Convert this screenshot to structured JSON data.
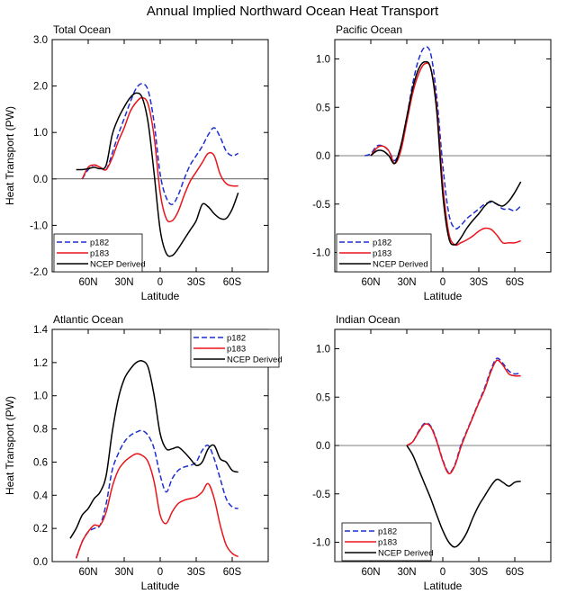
{
  "figure": {
    "title": "Annual Implied Northward Ocean Heat Transport"
  },
  "chart_data": [
    {
      "type": "line",
      "title": "Total Ocean",
      "xlabel": "Latitude",
      "ylabel": "Heat Transport (PW)",
      "xlim": [
        90,
        -90
      ],
      "ylim": [
        -2.0,
        3.0
      ],
      "xticks": [
        60,
        30,
        0,
        -30,
        -60
      ],
      "xtick_labels": [
        "60N",
        "30N",
        "0",
        "30S",
        "60S"
      ],
      "yticks": [
        -2.0,
        -1.0,
        0.0,
        1.0,
        2.0,
        3.0
      ],
      "ytick_labels": [
        "-2.0",
        "-1.0",
        "0.0",
        "1.0",
        "2.0",
        "3.0"
      ],
      "legend_position": "bottom-left",
      "zero_line": true,
      "series": [
        {
          "name": "p182",
          "color": "#1f2fcf",
          "dash": true,
          "x": [
            65,
            60,
            55,
            50,
            45,
            40,
            35,
            30,
            25,
            20,
            15,
            10,
            5,
            0,
            -5,
            -10,
            -15,
            -20,
            -25,
            -30,
            -35,
            -40,
            -45,
            -50,
            -55,
            -60,
            -65
          ],
          "y": [
            0.0,
            0.2,
            0.3,
            0.25,
            0.2,
            0.55,
            0.95,
            1.3,
            1.65,
            1.95,
            2.05,
            1.9,
            1.2,
            0.1,
            -0.4,
            -0.55,
            -0.35,
            0.0,
            0.3,
            0.5,
            0.7,
            0.95,
            1.1,
            0.9,
            0.6,
            0.5,
            0.55
          ]
        },
        {
          "name": "p183",
          "color": "#e8151b",
          "dash": false,
          "x": [
            65,
            60,
            55,
            50,
            45,
            40,
            35,
            30,
            25,
            20,
            15,
            10,
            5,
            0,
            -5,
            -10,
            -15,
            -20,
            -25,
            -30,
            -35,
            -40,
            -45,
            -50,
            -55,
            -60,
            -65
          ],
          "y": [
            0.0,
            0.25,
            0.3,
            0.25,
            0.2,
            0.45,
            0.8,
            1.1,
            1.45,
            1.65,
            1.75,
            1.6,
            0.9,
            -0.3,
            -0.85,
            -0.9,
            -0.7,
            -0.35,
            -0.05,
            0.15,
            0.35,
            0.55,
            0.5,
            0.1,
            -0.1,
            -0.15,
            -0.15
          ]
        },
        {
          "name": "NCEP Derived",
          "color": "#000000",
          "dash": false,
          "x": [
            70,
            65,
            60,
            55,
            50,
            45,
            40,
            35,
            30,
            25,
            20,
            15,
            10,
            5,
            0,
            -5,
            -10,
            -15,
            -20,
            -25,
            -30,
            -35,
            -40,
            -45,
            -50,
            -55,
            -60,
            -65
          ],
          "y": [
            0.2,
            0.2,
            0.22,
            0.25,
            0.22,
            0.3,
            0.95,
            1.3,
            1.55,
            1.75,
            1.85,
            1.75,
            1.2,
            0.1,
            -1.1,
            -1.6,
            -1.65,
            -1.5,
            -1.3,
            -1.1,
            -0.9,
            -0.55,
            -0.6,
            -0.75,
            -0.85,
            -0.85,
            -0.65,
            -0.3
          ]
        }
      ]
    },
    {
      "type": "line",
      "title": "Pacific Ocean",
      "xlabel": "Latitude",
      "ylabel": "",
      "xlim": [
        90,
        -90
      ],
      "ylim": [
        -1.2,
        1.2
      ],
      "xticks": [
        60,
        30,
        0,
        -30,
        -60
      ],
      "xtick_labels": [
        "60N",
        "30N",
        "0",
        "30S",
        "60S"
      ],
      "yticks": [
        -1.0,
        -0.5,
        0.0,
        0.5,
        1.0
      ],
      "ytick_labels": [
        "-1.0",
        "-0.5",
        "0.0",
        "0.5",
        "1.0"
      ],
      "legend_position": "bottom-left",
      "zero_line": true,
      "series": [
        {
          "name": "p182",
          "color": "#1f2fcf",
          "dash": true,
          "x": [
            65,
            60,
            55,
            50,
            45,
            40,
            35,
            30,
            25,
            20,
            15,
            10,
            5,
            0,
            -5,
            -10,
            -15,
            -20,
            -25,
            -30,
            -35,
            -40,
            -45,
            -50,
            -55,
            -60,
            -65
          ],
          "y": [
            0.0,
            0.02,
            0.1,
            0.1,
            0.05,
            -0.05,
            0.1,
            0.4,
            0.75,
            1.0,
            1.12,
            1.05,
            0.6,
            -0.1,
            -0.6,
            -0.75,
            -0.72,
            -0.65,
            -0.6,
            -0.55,
            -0.5,
            -0.48,
            -0.5,
            -0.55,
            -0.55,
            -0.57,
            -0.52
          ]
        },
        {
          "name": "p183",
          "color": "#e8151b",
          "dash": false,
          "x": [
            60,
            55,
            50,
            45,
            40,
            35,
            30,
            25,
            20,
            15,
            10,
            5,
            0,
            -5,
            -10,
            -15,
            -20,
            -25,
            -30,
            -35,
            -40,
            -45,
            -50,
            -55,
            -60,
            -65
          ],
          "y": [
            0.0,
            0.08,
            0.1,
            0.05,
            -0.08,
            0.05,
            0.35,
            0.65,
            0.85,
            0.95,
            0.9,
            0.5,
            -0.3,
            -0.8,
            -0.92,
            -0.9,
            -0.87,
            -0.83,
            -0.78,
            -0.75,
            -0.76,
            -0.82,
            -0.9,
            -0.9,
            -0.9,
            -0.88
          ]
        },
        {
          "name": "NCEP Derived",
          "color": "#000000",
          "dash": false,
          "x": [
            60,
            55,
            50,
            45,
            40,
            35,
            30,
            25,
            20,
            15,
            10,
            5,
            0,
            -5,
            -10,
            -15,
            -20,
            -25,
            -30,
            -35,
            -40,
            -45,
            -50,
            -55,
            -60,
            -65
          ],
          "y": [
            0.0,
            0.05,
            0.05,
            0.0,
            -0.08,
            0.1,
            0.4,
            0.7,
            0.9,
            0.97,
            0.9,
            0.45,
            -0.4,
            -0.85,
            -0.92,
            -0.85,
            -0.75,
            -0.67,
            -0.6,
            -0.52,
            -0.47,
            -0.5,
            -0.52,
            -0.47,
            -0.38,
            -0.27
          ]
        }
      ]
    },
    {
      "type": "line",
      "title": "Atlantic Ocean",
      "xlabel": "Latitude",
      "ylabel": "Heat Transport (PW)",
      "xlim": [
        90,
        -90
      ],
      "ylim": [
        0.0,
        1.4
      ],
      "xticks": [
        60,
        30,
        0,
        -30,
        -60
      ],
      "xtick_labels": [
        "60N",
        "30N",
        "0",
        "30S",
        "60S"
      ],
      "yticks": [
        0.0,
        0.2,
        0.4,
        0.6,
        0.8,
        1.0,
        1.2,
        1.4
      ],
      "ytick_labels": [
        "0.0",
        "0.2",
        "0.4",
        "0.6",
        "0.8",
        "1.0",
        "1.2",
        "1.4"
      ],
      "legend_position": "top-right",
      "zero_line": false,
      "series": [
        {
          "name": "p182",
          "color": "#1f2fcf",
          "dash": true,
          "x": [
            70,
            65,
            60,
            55,
            50,
            45,
            40,
            35,
            30,
            25,
            20,
            15,
            10,
            5,
            0,
            -5,
            -10,
            -15,
            -20,
            -25,
            -30,
            -35,
            -40,
            -45,
            -50,
            -55,
            -60,
            -65
          ],
          "y": [
            0.02,
            0.12,
            0.18,
            0.2,
            0.22,
            0.35,
            0.55,
            0.65,
            0.72,
            0.76,
            0.78,
            0.79,
            0.76,
            0.68,
            0.52,
            0.42,
            0.5,
            0.55,
            0.57,
            0.58,
            0.6,
            0.67,
            0.7,
            0.62,
            0.5,
            0.38,
            0.33,
            0.32
          ]
        },
        {
          "name": "p183",
          "color": "#e8151b",
          "dash": false,
          "x": [
            70,
            65,
            60,
            55,
            50,
            45,
            40,
            35,
            30,
            25,
            20,
            15,
            10,
            5,
            0,
            -5,
            -10,
            -15,
            -20,
            -25,
            -30,
            -35,
            -40,
            -45,
            -50,
            -55,
            -60,
            -65
          ],
          "y": [
            0.02,
            0.12,
            0.18,
            0.22,
            0.22,
            0.3,
            0.45,
            0.55,
            0.6,
            0.63,
            0.65,
            0.64,
            0.6,
            0.48,
            0.28,
            0.23,
            0.3,
            0.35,
            0.37,
            0.38,
            0.39,
            0.42,
            0.47,
            0.38,
            0.22,
            0.1,
            0.05,
            0.03
          ]
        },
        {
          "name": "NCEP Derived",
          "color": "#000000",
          "dash": false,
          "x": [
            75,
            70,
            65,
            60,
            55,
            50,
            45,
            40,
            35,
            30,
            25,
            20,
            15,
            10,
            5,
            0,
            -5,
            -10,
            -15,
            -20,
            -25,
            -30,
            -35,
            -40,
            -45,
            -50,
            -55,
            -60,
            -65
          ],
          "y": [
            0.14,
            0.2,
            0.28,
            0.32,
            0.38,
            0.42,
            0.52,
            0.78,
            0.98,
            1.1,
            1.16,
            1.2,
            1.21,
            1.17,
            1.0,
            0.77,
            0.68,
            0.68,
            0.69,
            0.66,
            0.62,
            0.58,
            0.6,
            0.68,
            0.7,
            0.62,
            0.6,
            0.55,
            0.54
          ]
        }
      ]
    },
    {
      "type": "line",
      "title": "Indian Ocean",
      "xlabel": "Latitude",
      "ylabel": "",
      "xlim": [
        90,
        -90
      ],
      "ylim": [
        -1.2,
        1.2
      ],
      "xticks": [
        60,
        30,
        0,
        -30,
        -60
      ],
      "xtick_labels": [
        "60N",
        "30N",
        "0",
        "30S",
        "60S"
      ],
      "yticks": [
        -1.0,
        -0.5,
        0.0,
        0.5,
        1.0
      ],
      "ytick_labels": [
        "-1.0",
        "-0.5",
        "0.0",
        "0.5",
        "1.0"
      ],
      "legend_position": "bottom-left",
      "zero_line": true,
      "series": [
        {
          "name": "p182",
          "color": "#1f2fcf",
          "dash": true,
          "x": [
            30,
            25,
            20,
            15,
            10,
            5,
            0,
            -5,
            -10,
            -15,
            -20,
            -25,
            -30,
            -35,
            -40,
            -45,
            -50,
            -55,
            -60,
            -65
          ],
          "y": [
            0.0,
            0.04,
            0.15,
            0.23,
            0.2,
            0.05,
            -0.15,
            -0.28,
            -0.2,
            0.0,
            0.15,
            0.3,
            0.45,
            0.6,
            0.78,
            0.9,
            0.85,
            0.77,
            0.74,
            0.75
          ]
        },
        {
          "name": "p183",
          "color": "#e8151b",
          "dash": false,
          "x": [
            30,
            25,
            20,
            15,
            10,
            5,
            0,
            -5,
            -10,
            -15,
            -20,
            -25,
            -30,
            -35,
            -40,
            -45,
            -50,
            -55,
            -60,
            -65
          ],
          "y": [
            0.0,
            0.04,
            0.14,
            0.22,
            0.19,
            0.04,
            -0.16,
            -0.29,
            -0.21,
            -0.02,
            0.14,
            0.29,
            0.44,
            0.58,
            0.76,
            0.88,
            0.83,
            0.74,
            0.72,
            0.72
          ]
        },
        {
          "name": "NCEP Derived",
          "color": "#000000",
          "dash": false,
          "x": [
            30,
            25,
            20,
            15,
            10,
            5,
            0,
            -5,
            -10,
            -15,
            -20,
            -25,
            -30,
            -35,
            -40,
            -45,
            -50,
            -55,
            -60,
            -65
          ],
          "y": [
            0.0,
            -0.1,
            -0.25,
            -0.4,
            -0.55,
            -0.72,
            -0.88,
            -1.0,
            -1.05,
            -1.0,
            -0.9,
            -0.75,
            -0.62,
            -0.52,
            -0.42,
            -0.35,
            -0.38,
            -0.42,
            -0.38,
            -0.37
          ]
        }
      ]
    }
  ]
}
